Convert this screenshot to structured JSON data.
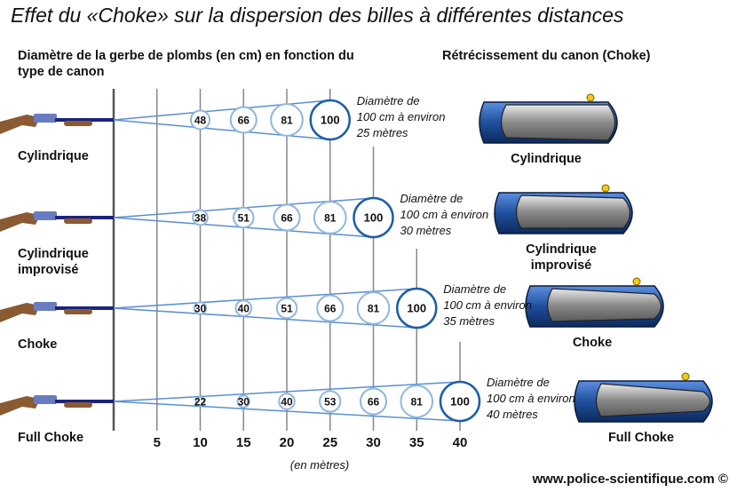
{
  "title": "Effet du «Choke» sur la dispersion des billes à différentes distances",
  "left_heading": "Diamètre de la gerbe de plombs (en cm) en fonction du type de canon",
  "right_heading": "Rétrécissement du canon (Choke)",
  "distances": [
    5,
    10,
    15,
    20,
    25,
    30,
    35,
    40
  ],
  "axis_unit": "(en mètres)",
  "rows": [
    {
      "label": [
        "Cylindrique"
      ],
      "values": [
        [
          10,
          48
        ],
        [
          15,
          66
        ],
        [
          20,
          81
        ],
        [
          25,
          100
        ]
      ],
      "note": [
        "Diamètre de",
        "100 cm à environ",
        "25 mètres"
      ],
      "choke_label": [
        "Cylindrique"
      ]
    },
    {
      "label": [
        "Cylindrique",
        "improvisé"
      ],
      "values": [
        [
          10,
          38
        ],
        [
          15,
          51
        ],
        [
          20,
          66
        ],
        [
          25,
          81
        ],
        [
          30,
          100
        ]
      ],
      "note": [
        "Diamètre de",
        "100 cm à environ",
        "30 mètres"
      ],
      "choke_label": [
        "Cylindrique",
        "improvisé"
      ]
    },
    {
      "label": [
        "Choke"
      ],
      "values": [
        [
          10,
          30
        ],
        [
          15,
          40
        ],
        [
          20,
          51
        ],
        [
          25,
          66
        ],
        [
          30,
          81
        ],
        [
          35,
          100
        ]
      ],
      "note": [
        "Diamètre de",
        "100 cm à environ",
        "35 mètres"
      ],
      "choke_label": [
        "Choke"
      ]
    },
    {
      "label": [
        "Full Choke"
      ],
      "values": [
        [
          10,
          22
        ],
        [
          15,
          30
        ],
        [
          20,
          40
        ],
        [
          25,
          53
        ],
        [
          30,
          66
        ],
        [
          35,
          81
        ],
        [
          40,
          100
        ]
      ],
      "note": [
        "Diamètre de",
        "100 cm à environ",
        "40 mètres"
      ],
      "choke_label": [
        "Full Choke"
      ]
    }
  ],
  "footer": "www.police-scientifique.com ©",
  "colors": {
    "cone": "#5b8fd0",
    "circle": "#8fb7de",
    "circle_max": "#1d5ea8",
    "barrel": "#1f4f9c",
    "stock": "#8a5a32",
    "sight": "#f2c81a"
  }
}
